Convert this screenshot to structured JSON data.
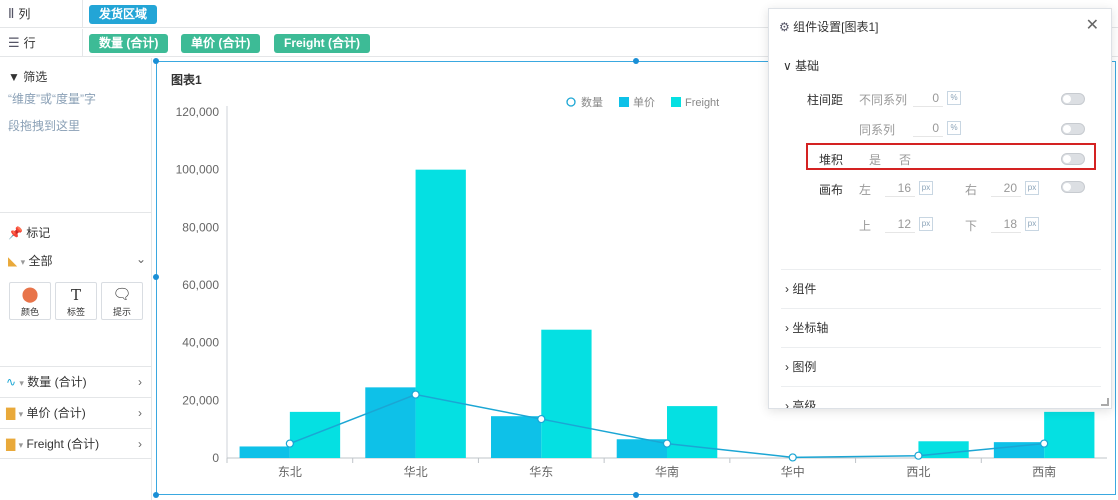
{
  "columns_bar": {
    "label": "列",
    "icon": "columns-icon",
    "pills": [
      "发货区域"
    ]
  },
  "rows_bar": {
    "label": "行",
    "icon": "rows-icon",
    "pills": [
      "数量 (合计)",
      "单价 (合计)",
      "Freight (合计)"
    ]
  },
  "filter": {
    "title": "筛选",
    "hint_line1": "“维度”或“度量”字",
    "hint_line2": "段拖拽到这里"
  },
  "marks": {
    "title": "标记",
    "selector": "全部",
    "tiles": [
      {
        "label": "颜色",
        "icon": "color-icon"
      },
      {
        "label": "标签",
        "icon": "text-icon"
      },
      {
        "label": "提示",
        "icon": "tooltip-icon"
      }
    ],
    "fields": [
      {
        "label": "数量 (合计)",
        "icon": "line-chart-icon"
      },
      {
        "label": "单价 (合计)",
        "icon": "bar-chart-icon"
      },
      {
        "label": "Freight (合计)",
        "icon": "bar-chart-icon"
      }
    ]
  },
  "chart_data": {
    "type": "bar",
    "title": "图表1",
    "categories": [
      "东北",
      "华北",
      "华东",
      "华南",
      "华中",
      "西北",
      "西南"
    ],
    "ylim": [
      0,
      120000
    ],
    "yticks": [
      "0",
      "20,000",
      "40,000",
      "60,000",
      "80,000",
      "100,000",
      "120,000"
    ],
    "legend_position": "top-center",
    "grid": false,
    "series": [
      {
        "name": "数量",
        "kind": "line",
        "color": "#1ba6d4",
        "values": [
          5000,
          22000,
          13500,
          5000,
          200,
          800,
          5000
        ]
      },
      {
        "name": "单价",
        "kind": "bar",
        "color": "#0ec1e8",
        "values": [
          4000,
          24500,
          14500,
          6500,
          0,
          0,
          5500
        ]
      },
      {
        "name": "Freight",
        "kind": "bar",
        "color": "#05e0e2",
        "values": [
          16000,
          100000,
          44500,
          18000,
          0,
          5800,
          16000
        ]
      }
    ]
  },
  "settings_panel": {
    "title": "组件设置[图表1]",
    "section_basic": "基础",
    "bar_spacing_label": "柱间距",
    "diff_series_label": "不同系列",
    "diff_series_value": "0",
    "same_series_label": "同系列",
    "same_series_value": "0",
    "percent_unit": "%",
    "stack_label": "堆积",
    "stack_yes": "是",
    "stack_no": "否",
    "layout_label": "画布",
    "left_label": "左",
    "left_value": "16",
    "right_label": "右",
    "right_value": "20",
    "top_label": "上",
    "top_value": "12",
    "bottom_label": "下",
    "bottom_value": "18",
    "px_unit": "px",
    "sections": [
      "组件",
      "坐标轴",
      "图例",
      "高级"
    ]
  }
}
